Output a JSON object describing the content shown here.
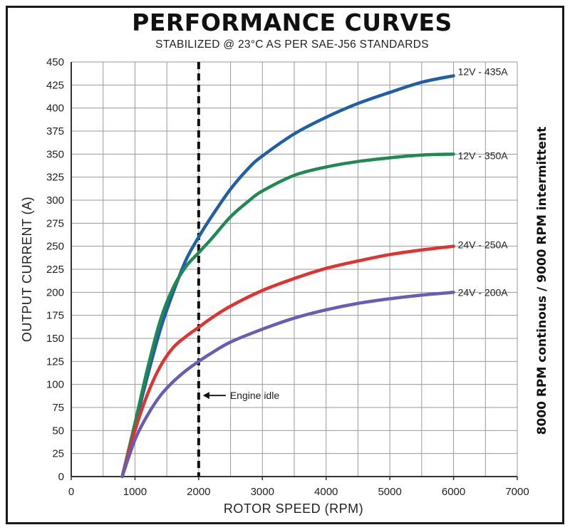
{
  "chart_data": {
    "type": "line",
    "title": "PERFORMANCE CURVES",
    "subtitle": "STABILIZED @ 23°C AS PER SAE-J56 STANDARDS",
    "xlabel": "ROTOR SPEED (RPM)",
    "ylabel": "OUTPUT CURRENT (A)",
    "xlim": [
      0,
      7000
    ],
    "ylim": [
      0,
      450
    ],
    "xticks": [
      "0",
      "1000",
      "2000",
      "3000",
      "4000",
      "5000",
      "6000",
      "7000"
    ],
    "yticks": [
      "0",
      "25",
      "50",
      "75",
      "100",
      "125",
      "150",
      "175",
      "200",
      "225",
      "250",
      "275",
      "300",
      "325",
      "350",
      "375",
      "400",
      "425",
      "450"
    ],
    "grid": true,
    "side_note": "8000 RPM continous  /  9000 RPM intermittent",
    "annotations": [
      {
        "text": "Engine idle",
        "x": 2000,
        "marker": "dashed-vertical-line"
      }
    ],
    "series": [
      {
        "name": "12V - 435A",
        "color": "#1f5fa8",
        "x": [
          800,
          1000,
          1200,
          1400,
          1600,
          1800,
          2000,
          2200,
          2500,
          2800,
          3000,
          3500,
          4000,
          4500,
          5000,
          5500,
          6000
        ],
        "y": [
          0,
          55,
          110,
          160,
          200,
          235,
          260,
          282,
          312,
          336,
          348,
          372,
          390,
          405,
          417,
          428,
          435
        ]
      },
      {
        "name": "12V - 350A",
        "color": "#1e8a52",
        "x": [
          800,
          1000,
          1200,
          1400,
          1600,
          1800,
          2000,
          2200,
          2500,
          2800,
          3000,
          3500,
          4000,
          4500,
          5000,
          5500,
          6000
        ],
        "y": [
          0,
          58,
          118,
          170,
          205,
          228,
          243,
          258,
          282,
          300,
          310,
          327,
          336,
          342,
          346,
          349,
          350
        ]
      },
      {
        "name": "24V - 250A",
        "color": "#e03331",
        "x": [
          800,
          1000,
          1200,
          1400,
          1600,
          1800,
          2000,
          2200,
          2500,
          3000,
          3500,
          4000,
          4500,
          5000,
          5500,
          6000
        ],
        "y": [
          0,
          50,
          90,
          120,
          140,
          152,
          162,
          172,
          185,
          202,
          215,
          226,
          234,
          241,
          246,
          250
        ]
      },
      {
        "name": "24V - 200A",
        "color": "#6a5bb5",
        "x": [
          800,
          1000,
          1200,
          1400,
          1600,
          1800,
          2000,
          2200,
          2500,
          3000,
          3500,
          4000,
          4500,
          5000,
          5500,
          6000
        ],
        "y": [
          0,
          40,
          67,
          88,
          103,
          115,
          125,
          134,
          146,
          160,
          172,
          181,
          188,
          193,
          197,
          200
        ]
      }
    ]
  },
  "colors": {
    "grid": "#9a9a9a",
    "axis": "#333333",
    "idle_line": "#111111"
  }
}
